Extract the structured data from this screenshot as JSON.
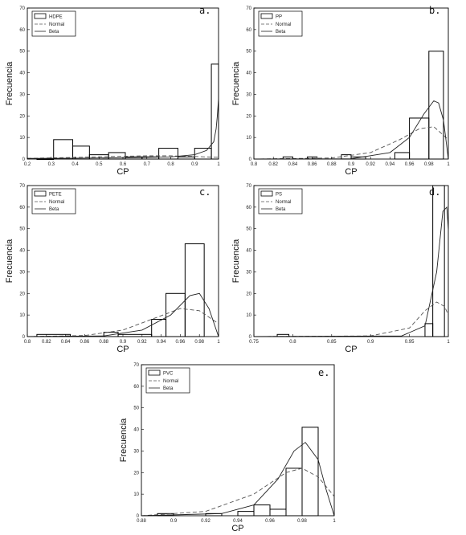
{
  "colors": {
    "frame": "#000000",
    "bars": "#000000",
    "normal": "#555555",
    "beta": "#222222",
    "background": "#ffffff"
  },
  "chart_data": [
    {
      "type": "bar",
      "panel_label": "a.",
      "xlabel": "CP",
      "ylabel": "Frecuencia",
      "xlim": [
        0.2,
        1.0
      ],
      "ylim": [
        0,
        70
      ],
      "xticks": [
        "0.2",
        "0.3",
        "0.4",
        "0.5",
        "0.6",
        "0.7",
        "0.8",
        "0.9",
        "1"
      ],
      "xtick_values": [
        0.2,
        0.3,
        0.4,
        0.5,
        0.6,
        0.7,
        0.8,
        0.9,
        1.0
      ],
      "yticks": [
        "0",
        "10",
        "20",
        "30",
        "40",
        "50",
        "60",
        "70"
      ],
      "ytick_values": [
        0,
        10,
        20,
        30,
        40,
        50,
        60,
        70
      ],
      "bins": [
        {
          "x0": 0.24,
          "x1": 0.31,
          "value": 0
        },
        {
          "x0": 0.31,
          "x1": 0.39,
          "value": 9
        },
        {
          "x0": 0.39,
          "x1": 0.46,
          "value": 6
        },
        {
          "x0": 0.46,
          "x1": 0.54,
          "value": 2
        },
        {
          "x0": 0.54,
          "x1": 0.61,
          "value": 3
        },
        {
          "x0": 0.61,
          "x1": 0.68,
          "value": 1
        },
        {
          "x0": 0.68,
          "x1": 0.75,
          "value": 1
        },
        {
          "x0": 0.75,
          "x1": 0.83,
          "value": 5
        },
        {
          "x0": 0.83,
          "x1": 0.9,
          "value": 1
        },
        {
          "x0": 0.9,
          "x1": 0.97,
          "value": 5
        },
        {
          "x0": 0.97,
          "x1": 1.04,
          "value": 44
        }
      ],
      "legend": [
        "HDPE",
        "Normal",
        "Beta"
      ],
      "normal_curve": {
        "x": [
          0.2,
          0.4,
          0.6,
          0.7,
          0.8,
          0.9,
          1.0
        ],
        "y": [
          0.3,
          0.8,
          1.3,
          1.5,
          1.5,
          1.2,
          0.8
        ]
      },
      "beta_curve": {
        "x": [
          0.2,
          0.4,
          0.6,
          0.8,
          0.9,
          0.95,
          0.98,
          0.99,
          0.995,
          1.0
        ],
        "y": [
          0.3,
          0.4,
          0.6,
          1.0,
          2.0,
          4.0,
          8.0,
          14.0,
          20.0,
          28.0
        ]
      }
    },
    {
      "type": "bar",
      "panel_label": "b.",
      "xlabel": "CP",
      "ylabel": "Frecuencia",
      "xlim": [
        0.8,
        1.0
      ],
      "ylim": [
        0,
        70
      ],
      "xticks": [
        "0.8",
        "0.82",
        "0.84",
        "0.86",
        "0.88",
        "0.9",
        "0.92",
        "0.94",
        "0.96",
        "0.98",
        "1"
      ],
      "xtick_values": [
        0.8,
        0.82,
        0.84,
        0.86,
        0.88,
        0.9,
        0.92,
        0.94,
        0.96,
        0.98,
        1.0
      ],
      "yticks": [
        "0",
        "10",
        "20",
        "30",
        "40",
        "50",
        "60",
        "70"
      ],
      "ytick_values": [
        0,
        10,
        20,
        30,
        40,
        50,
        60,
        70
      ],
      "bins": [
        {
          "x0": 0.83,
          "x1": 0.84,
          "value": 1
        },
        {
          "x0": 0.855,
          "x1": 0.865,
          "value": 1
        },
        {
          "x0": 0.89,
          "x1": 0.9,
          "value": 2
        },
        {
          "x0": 0.9,
          "x1": 0.915,
          "value": 1
        },
        {
          "x0": 0.945,
          "x1": 0.96,
          "value": 3
        },
        {
          "x0": 0.96,
          "x1": 0.98,
          "value": 19
        },
        {
          "x0": 0.98,
          "x1": 0.995,
          "value": 50
        }
      ],
      "legend": [
        "PP",
        "Normal",
        "Beta"
      ],
      "normal_curve": {
        "x": [
          0.8,
          0.88,
          0.92,
          0.95,
          0.97,
          0.985,
          1.0
        ],
        "y": [
          0,
          0.5,
          3,
          9,
          14,
          15,
          9
        ]
      },
      "beta_curve": {
        "x": [
          0.8,
          0.9,
          0.94,
          0.96,
          0.975,
          0.985,
          0.99,
          0.995,
          1.0
        ],
        "y": [
          0,
          0.1,
          3,
          10,
          21,
          27,
          26,
          18,
          0
        ]
      }
    },
    {
      "type": "bar",
      "panel_label": "c.",
      "xlabel": "CP",
      "ylabel": "Frecuencia",
      "xlim": [
        0.8,
        1.0
      ],
      "ylim": [
        0,
        70
      ],
      "xticks": [
        "0.8",
        "0.82",
        "0.84",
        "0.86",
        "0.88",
        "0.9",
        "0.92",
        "0.94",
        "0.96",
        "0.98",
        "1"
      ],
      "xtick_values": [
        0.8,
        0.82,
        0.84,
        0.86,
        0.88,
        0.9,
        0.92,
        0.94,
        0.96,
        0.98,
        1.0
      ],
      "yticks": [
        "0",
        "10",
        "20",
        "30",
        "40",
        "50",
        "60",
        "70"
      ],
      "ytick_values": [
        0,
        10,
        20,
        30,
        40,
        50,
        60,
        70
      ],
      "bins": [
        {
          "x0": 0.81,
          "x1": 0.845,
          "value": 1
        },
        {
          "x0": 0.88,
          "x1": 0.895,
          "value": 2
        },
        {
          "x0": 0.895,
          "x1": 0.93,
          "value": 1
        },
        {
          "x0": 0.93,
          "x1": 0.945,
          "value": 8
        },
        {
          "x0": 0.945,
          "x1": 0.965,
          "value": 20
        },
        {
          "x0": 0.965,
          "x1": 0.985,
          "value": 43
        }
      ],
      "legend": [
        "PETE",
        "Normal",
        "Beta"
      ],
      "normal_curve": {
        "x": [
          0.8,
          0.86,
          0.9,
          0.93,
          0.96,
          0.98,
          1.0
        ],
        "y": [
          0,
          0.5,
          3,
          8,
          13,
          12,
          6
        ]
      },
      "beta_curve": {
        "x": [
          0.8,
          0.88,
          0.92,
          0.95,
          0.97,
          0.98,
          0.99,
          1.0
        ],
        "y": [
          0,
          0.3,
          3,
          10,
          19,
          20,
          13,
          0
        ]
      }
    },
    {
      "type": "bar",
      "panel_label": "d.",
      "xlabel": "CP",
      "ylabel": "Frecuencia",
      "xlim": [
        0.75,
        1.0
      ],
      "ylim": [
        0,
        70
      ],
      "xticks": [
        "0.75",
        "0.8",
        "0.85",
        "0.9",
        "0.95",
        "1"
      ],
      "xtick_values": [
        0.75,
        0.8,
        0.85,
        0.9,
        0.95,
        1.0
      ],
      "yticks": [
        "0",
        "10",
        "20",
        "30",
        "40",
        "50",
        "60",
        "70"
      ],
      "ytick_values": [
        0,
        10,
        20,
        30,
        40,
        50,
        60,
        70
      ],
      "bins": [
        {
          "x0": 0.78,
          "x1": 0.795,
          "value": 1
        },
        {
          "x0": 0.97,
          "x1": 0.98,
          "value": 6
        },
        {
          "x0": 0.98,
          "x1": 0.995,
          "value": 70
        }
      ],
      "legend": [
        "PS",
        "Normal",
        "Beta"
      ],
      "normal_curve": {
        "x": [
          0.75,
          0.9,
          0.95,
          0.97,
          0.985,
          0.995,
          1.0
        ],
        "y": [
          0,
          0.3,
          4,
          12,
          16,
          14,
          10
        ]
      },
      "beta_curve": {
        "x": [
          0.75,
          0.94,
          0.97,
          0.985,
          0.993,
          0.998,
          1.0
        ],
        "y": [
          0,
          0.3,
          5,
          30,
          58,
          60,
          50
        ]
      }
    },
    {
      "type": "bar",
      "panel_label": "e.",
      "xlabel": "CP",
      "ylabel": "Frecuencia",
      "xlim": [
        0.88,
        1.0
      ],
      "ylim": [
        0,
        70
      ],
      "xticks": [
        "0.88",
        "0.9",
        "0.92",
        "0.94",
        "0.96",
        "0.98",
        "1"
      ],
      "xtick_values": [
        0.88,
        0.9,
        0.92,
        0.94,
        0.96,
        0.98,
        1.0
      ],
      "yticks": [
        "0",
        "10",
        "20",
        "30",
        "40",
        "50",
        "60",
        "70"
      ],
      "ytick_values": [
        0,
        10,
        20,
        30,
        40,
        50,
        60,
        70
      ],
      "bins": [
        {
          "x0": 0.89,
          "x1": 0.9,
          "value": 1
        },
        {
          "x0": 0.92,
          "x1": 0.93,
          "value": 1
        },
        {
          "x0": 0.94,
          "x1": 0.95,
          "value": 2
        },
        {
          "x0": 0.95,
          "x1": 0.96,
          "value": 5
        },
        {
          "x0": 0.96,
          "x1": 0.97,
          "value": 3
        },
        {
          "x0": 0.97,
          "x1": 0.98,
          "value": 22
        },
        {
          "x0": 0.98,
          "x1": 0.99,
          "value": 41
        }
      ],
      "legend": [
        "PVC",
        "Normal",
        "Beta"
      ],
      "normal_curve": {
        "x": [
          0.88,
          0.92,
          0.95,
          0.97,
          0.98,
          0.99,
          1.0
        ],
        "y": [
          0,
          2,
          10,
          20,
          22,
          18,
          9
        ]
      },
      "beta_curve": {
        "x": [
          0.88,
          0.93,
          0.95,
          0.965,
          0.975,
          0.982,
          0.99,
          0.995,
          1.0
        ],
        "y": [
          0,
          1,
          5,
          17,
          30,
          34,
          26,
          12,
          0
        ]
      }
    }
  ]
}
